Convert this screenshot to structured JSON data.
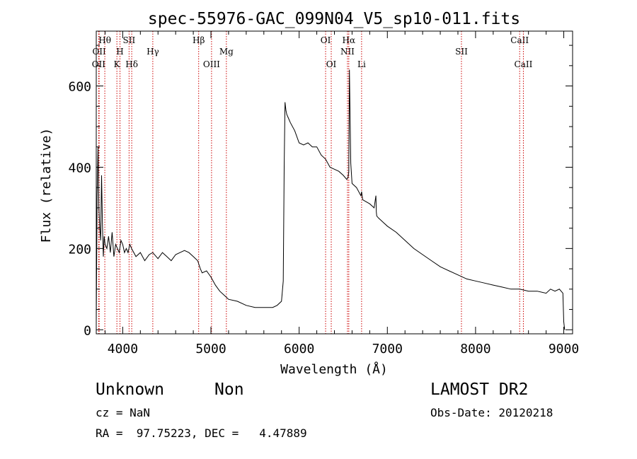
{
  "chart_data": {
    "type": "line",
    "title": "spec-55976-GAC_099N04_V5_sp10-011.fits",
    "xlabel": "Wavelength (Å)",
    "ylabel": "Flux (relative)",
    "xlim": [
      3700,
      9100
    ],
    "ylim": [
      -10,
      735
    ],
    "x_ticks": [
      4000,
      5000,
      6000,
      7000,
      8000,
      9000
    ],
    "y_ticks": [
      0,
      200,
      400,
      600
    ],
    "x_tick_labels": [
      "4000",
      "5000",
      "6000",
      "7000",
      "8000",
      "9000"
    ],
    "y_tick_labels": [
      "0",
      "200",
      "400",
      "600"
    ],
    "grid": false,
    "line_color": "#000000",
    "marker_color": "#cc0000",
    "series": [
      {
        "x": [
          3700,
          3710,
          3720,
          3730,
          3740,
          3750,
          3760,
          3770,
          3780,
          3790,
          3800,
          3820,
          3840,
          3860,
          3880,
          3900,
          3920,
          3940,
          3960,
          3980,
          4000,
          4020,
          4040,
          4060,
          4080,
          4100,
          4150,
          4200,
          4250,
          4300,
          4340,
          4400,
          4450,
          4500,
          4550,
          4600,
          4650,
          4700,
          4750,
          4800,
          4850,
          4880,
          4900,
          4950,
          5000,
          5050,
          5100,
          5150,
          5200,
          5300,
          5400,
          5500,
          5600,
          5700,
          5750,
          5800,
          5820,
          5830,
          5840,
          5850,
          5860,
          5880,
          5900,
          5950,
          6000,
          6050,
          6100,
          6150,
          6200,
          6250,
          6300,
          6350,
          6400,
          6450,
          6500,
          6540,
          6555,
          6563,
          6570,
          6585,
          6600,
          6650,
          6700,
          6708,
          6720,
          6800,
          6850,
          6870,
          6875,
          6880,
          6900,
          6950,
          7000,
          7100,
          7200,
          7300,
          7400,
          7500,
          7600,
          7700,
          7800,
          7900,
          8000,
          8100,
          8200,
          8300,
          8400,
          8500,
          8600,
          8700,
          8800,
          8850,
          8900,
          8950,
          8990,
          9000,
          9010
        ],
        "y": [
          20,
          330,
          450,
          300,
          250,
          220,
          380,
          260,
          180,
          230,
          210,
          200,
          230,
          190,
          240,
          180,
          210,
          200,
          190,
          220,
          210,
          190,
          200,
          190,
          210,
          200,
          180,
          190,
          170,
          185,
          190,
          175,
          190,
          180,
          170,
          185,
          190,
          195,
          190,
          180,
          170,
          150,
          140,
          145,
          130,
          110,
          95,
          85,
          75,
          70,
          60,
          55,
          55,
          55,
          60,
          70,
          120,
          400,
          560,
          540,
          530,
          520,
          510,
          490,
          460,
          455,
          460,
          450,
          450,
          430,
          420,
          400,
          395,
          390,
          380,
          370,
          375,
          390,
          640,
          410,
          360,
          350,
          330,
          340,
          320,
          310,
          300,
          330,
          290,
          280,
          275,
          265,
          255,
          240,
          220,
          200,
          185,
          170,
          155,
          145,
          135,
          125,
          120,
          115,
          110,
          105,
          100,
          100,
          95,
          95,
          90,
          100,
          95,
          100,
          90,
          20,
          0
        ]
      }
    ],
    "line_markers": [
      {
        "wavelength": 3727,
        "label": "OII",
        "row": 2
      },
      {
        "wavelength": 3733,
        "label": "OII",
        "row": 1
      },
      {
        "wavelength": 3797,
        "label": "Hθ",
        "row": 0
      },
      {
        "wavelength": 3934,
        "label": "K",
        "row": 2
      },
      {
        "wavelength": 3969,
        "label": "H",
        "row": 1
      },
      {
        "wavelength": 4072,
        "label": "SII",
        "row": 0
      },
      {
        "wavelength": 4102,
        "label": "Hδ",
        "row": 2
      },
      {
        "wavelength": 4341,
        "label": "Hγ",
        "row": 1
      },
      {
        "wavelength": 4861,
        "label": "Hβ",
        "row": 0
      },
      {
        "wavelength": 5007,
        "label": "OIII",
        "row": 2
      },
      {
        "wavelength": 5175,
        "label": "Mg",
        "row": 1
      },
      {
        "wavelength": 6300,
        "label": "OI",
        "row": 0
      },
      {
        "wavelength": 6364,
        "label": "OI",
        "row": 2
      },
      {
        "wavelength": 6548,
        "label": "NII",
        "row": 1
      },
      {
        "wavelength": 6563,
        "label": "Hα",
        "row": 0
      },
      {
        "wavelength": 6708,
        "label": "Li",
        "row": 2
      },
      {
        "wavelength": 7840,
        "label": "SII",
        "row": 1
      },
      {
        "wavelength": 8500,
        "label": "CaII",
        "row": 0
      },
      {
        "wavelength": 8542,
        "label": "CaII",
        "row": 2
      }
    ]
  },
  "info": {
    "class_name": "Unknown",
    "subclass": "Non",
    "survey": "LAMOST DR2",
    "cz": "cz = NaN",
    "obs_date": "Obs-Date: 20120218",
    "coords": "RA =  97.75223, DEC =   4.47889"
  }
}
